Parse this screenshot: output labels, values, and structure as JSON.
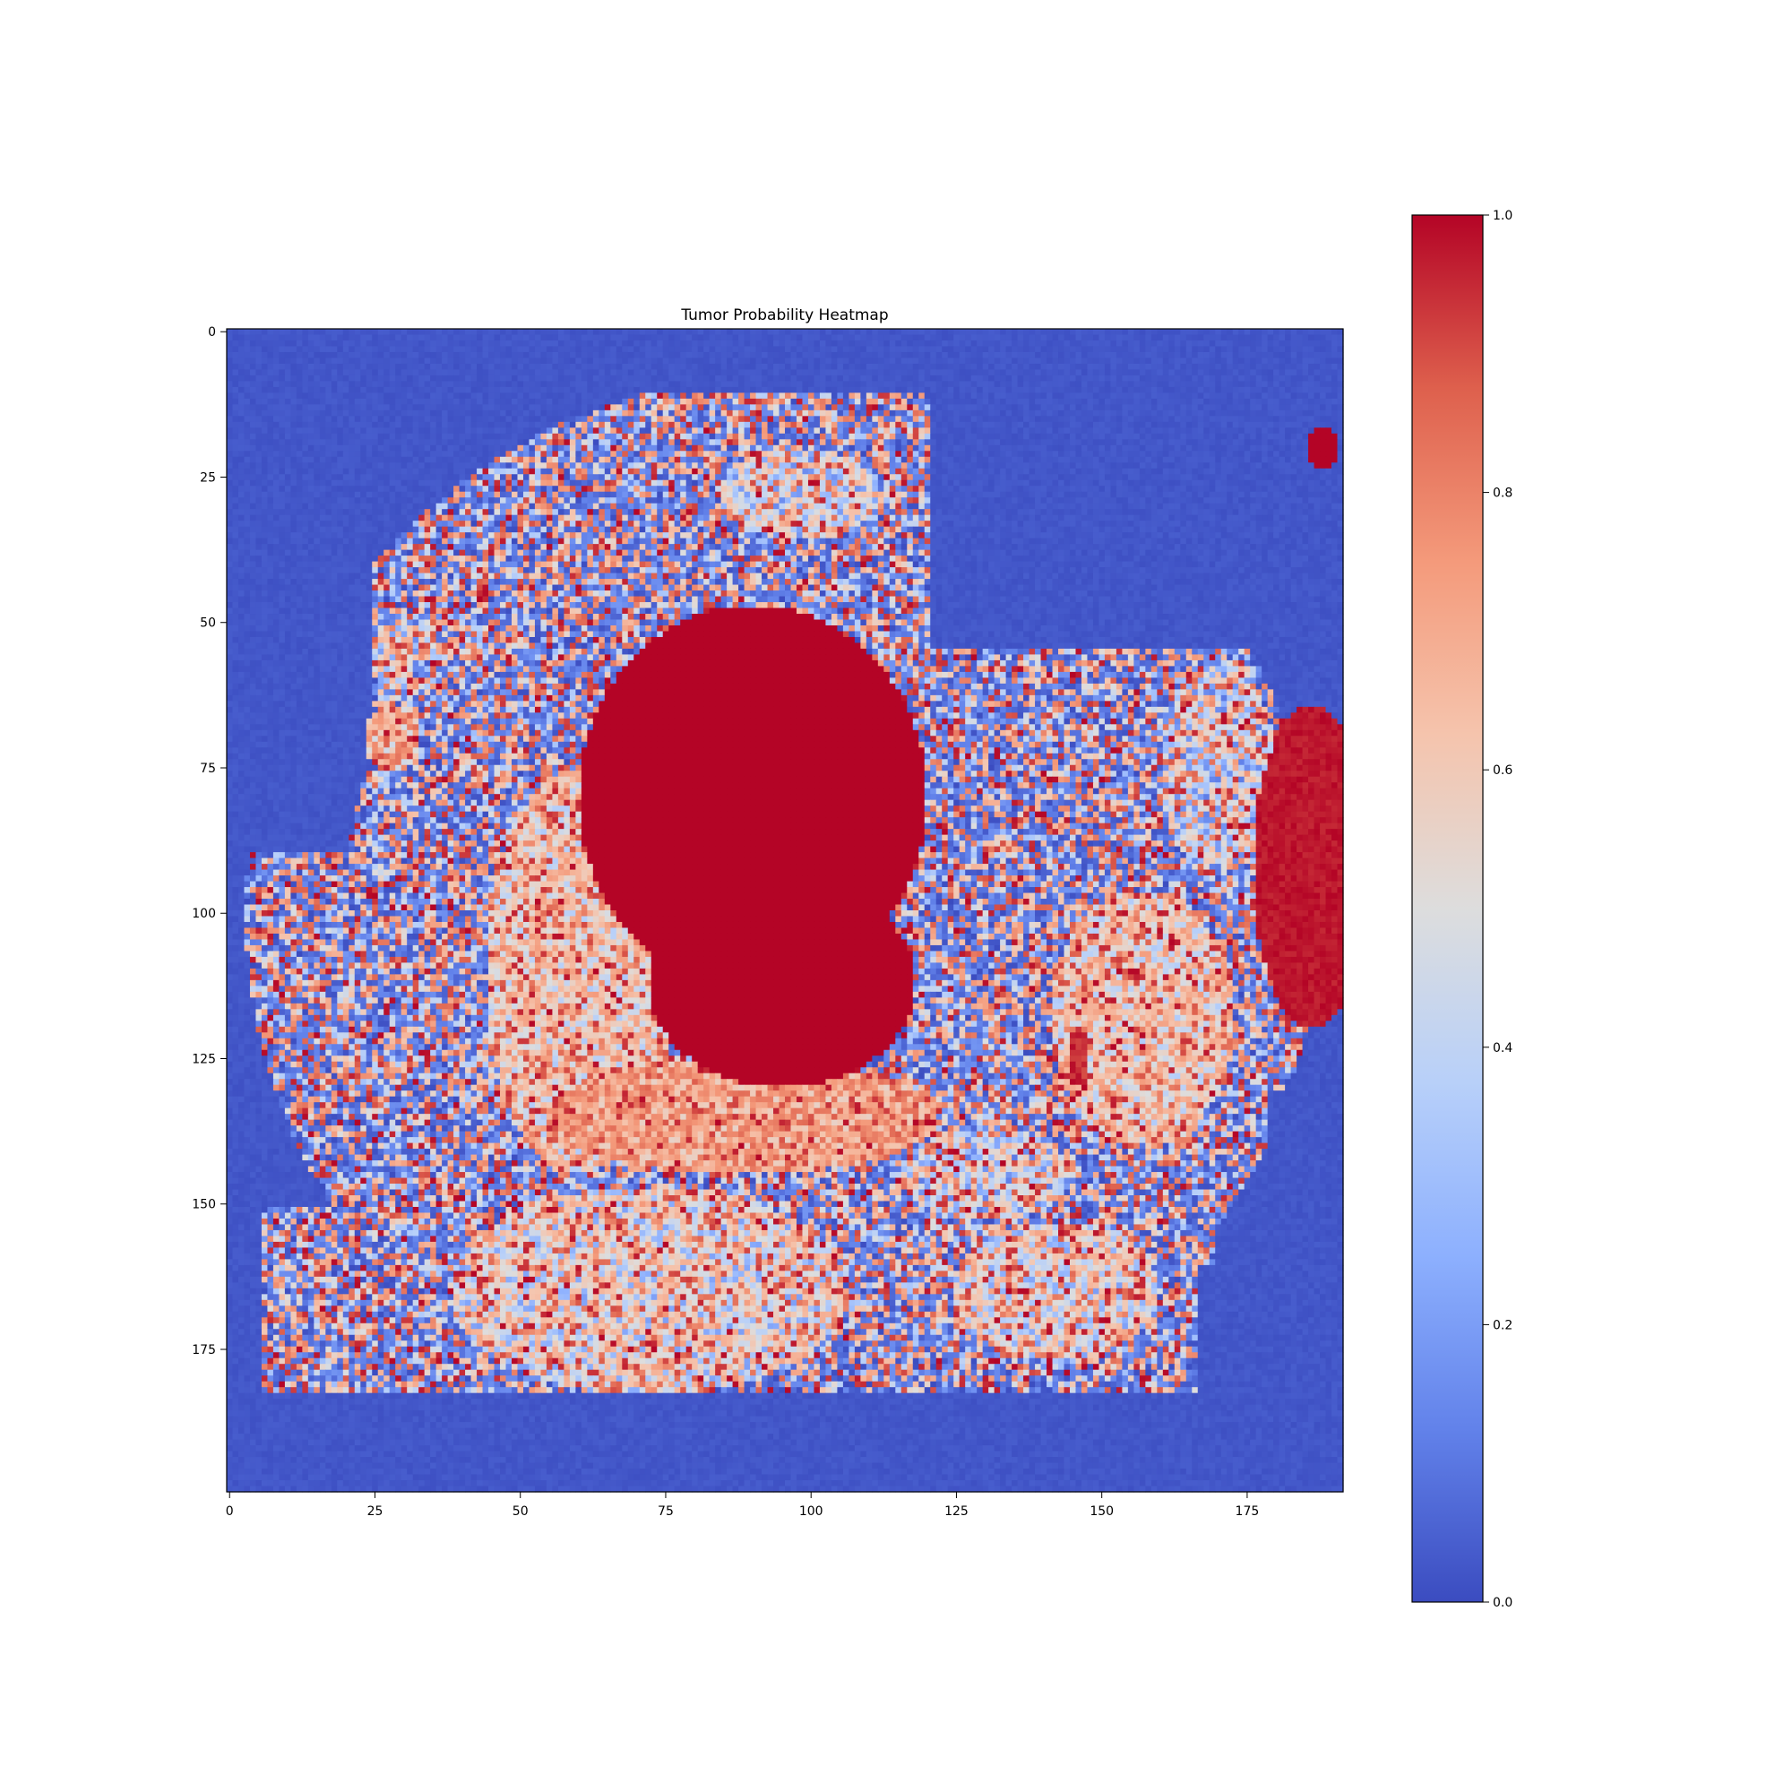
{
  "chart_data": {
    "type": "heatmap",
    "title": "Tumor Probability Heatmap",
    "xlabel": "",
    "ylabel": "",
    "colormap": "coolwarm",
    "grid": false,
    "grid_size": [
      192,
      200
    ],
    "x_range": [
      -0.5,
      191.5
    ],
    "y_range": [
      -0.5,
      199.5
    ],
    "y_inverted": true,
    "x_ticks": [
      0,
      25,
      50,
      75,
      100,
      125,
      150,
      175
    ],
    "y_ticks": [
      0,
      25,
      50,
      75,
      100,
      125,
      150,
      175
    ],
    "x_tick_labels": [
      "0",
      "25",
      "50",
      "75",
      "100",
      "125",
      "150",
      "175"
    ],
    "y_tick_labels": [
      "0",
      "25",
      "50",
      "75",
      "100",
      "125",
      "150",
      "175"
    ],
    "colorbar": {
      "min": 0.0,
      "max": 1.0,
      "ticks": [
        0.0,
        0.2,
        0.4,
        0.6,
        0.8,
        1.0
      ],
      "tick_labels": [
        "0.0",
        "0.2",
        "0.4",
        "0.6",
        "0.8",
        "1.0"
      ]
    },
    "regions": [
      {
        "shape": "ellipse",
        "cx": 90,
        "cy": 80,
        "rx": 30,
        "ry": 33,
        "value": 1.0,
        "texture": 0
      },
      {
        "shape": "ellipse",
        "cx": 95,
        "cy": 112,
        "rx": 23,
        "ry": 18,
        "value": 1.0,
        "texture": 0
      },
      {
        "shape": "ellipse",
        "cx": 88,
        "cy": 135,
        "rx": 34,
        "ry": 10,
        "value": 0.85,
        "texture": 0.3
      },
      {
        "shape": "ellipse",
        "cx": 60,
        "cy": 110,
        "rx": 16,
        "ry": 35,
        "value": 0.75,
        "texture": 0.4
      },
      {
        "shape": "ellipse",
        "cx": 186,
        "cy": 92,
        "rx": 10,
        "ry": 28,
        "value": 1.0,
        "texture": 0.05
      },
      {
        "shape": "ellipse",
        "cx": 188,
        "cy": 20,
        "rx": 3,
        "ry": 4,
        "value": 1.0,
        "texture": 0
      },
      {
        "shape": "ellipse",
        "cx": 28,
        "cy": 70,
        "rx": 5,
        "ry": 6,
        "value": 0.85,
        "texture": 0.4
      },
      {
        "shape": "ellipse",
        "cx": 28,
        "cy": 56,
        "rx": 4,
        "ry": 6,
        "value": 0.7,
        "texture": 0.5
      },
      {
        "shape": "ellipse",
        "cx": 157,
        "cy": 118,
        "rx": 16,
        "ry": 22,
        "value": 0.75,
        "texture": 0.4
      },
      {
        "shape": "ellipse",
        "cx": 72,
        "cy": 165,
        "rx": 34,
        "ry": 18,
        "value": 0.7,
        "texture": 0.5
      },
      {
        "shape": "ellipse",
        "cx": 142,
        "cy": 165,
        "rx": 18,
        "ry": 12,
        "value": 0.7,
        "texture": 0.5
      },
      {
        "shape": "ellipse",
        "cx": 98,
        "cy": 28,
        "rx": 14,
        "ry": 8,
        "value": 0.65,
        "texture": 0.5
      },
      {
        "shape": "ellipse",
        "cx": 170,
        "cy": 75,
        "rx": 10,
        "ry": 18,
        "value": 0.6,
        "texture": 0.5
      },
      {
        "shape": "ellipse",
        "cx": 130,
        "cy": 145,
        "rx": 15,
        "ry": 8,
        "value": 0.6,
        "texture": 0.5
      },
      {
        "shape": "ellipse",
        "cx": 146,
        "cy": 125,
        "rx": 2,
        "ry": 5,
        "value": 1.0,
        "texture": 0.1
      }
    ]
  }
}
